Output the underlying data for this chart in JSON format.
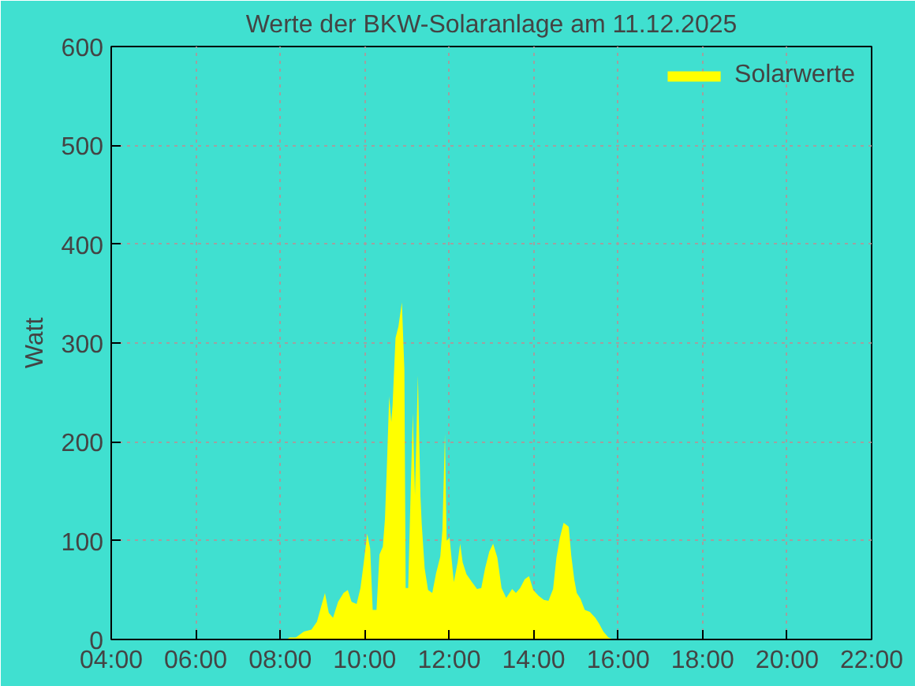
{
  "chart_data": {
    "type": "area",
    "title": "Werte der BKW-Solaranlage am 11.12.2025",
    "ylabel": "Watt",
    "xlim": [
      4,
      22
    ],
    "xticks": [
      {
        "value": 4,
        "label": "04:00"
      },
      {
        "value": 6,
        "label": "06:00"
      },
      {
        "value": 8,
        "label": "08:00"
      },
      {
        "value": 10,
        "label": "10:00"
      },
      {
        "value": 12,
        "label": "12:00"
      },
      {
        "value": 14,
        "label": "14:00"
      },
      {
        "value": 16,
        "label": "16:00"
      },
      {
        "value": 18,
        "label": "18:00"
      },
      {
        "value": 20,
        "label": "20:00"
      },
      {
        "value": 22,
        "label": "22:00"
      }
    ],
    "ylim": [
      0,
      600
    ],
    "yticks": [
      0,
      100,
      200,
      300,
      400,
      500,
      600
    ],
    "grid": true,
    "legend": "top right",
    "series": [
      {
        "name": "Solarwerte",
        "color": "#ffff00",
        "x": [
          8.15,
          8.22,
          8.37,
          8.56,
          8.74,
          8.87,
          8.96,
          9.06,
          9.15,
          9.25,
          9.37,
          9.5,
          9.6,
          9.69,
          9.81,
          9.9,
          9.97,
          10.06,
          10.13,
          10.19,
          10.28,
          10.35,
          10.43,
          10.48,
          10.53,
          10.58,
          10.63,
          10.66,
          10.73,
          10.8,
          10.88,
          10.94,
          10.97,
          11.03,
          11.09,
          11.14,
          11.19,
          11.26,
          11.32,
          11.35,
          11.42,
          11.5,
          11.6,
          11.69,
          11.79,
          11.84,
          11.9,
          11.94,
          12.01,
          12.11,
          12.2,
          12.26,
          12.32,
          12.41,
          12.54,
          12.66,
          12.76,
          12.85,
          12.95,
          13.04,
          13.14,
          13.24,
          13.35,
          13.49,
          13.58,
          13.68,
          13.79,
          13.89,
          13.99,
          14.12,
          14.24,
          14.35,
          14.46,
          14.54,
          14.62,
          14.71,
          14.83,
          14.89,
          14.96,
          15.02,
          15.11,
          15.21,
          15.33,
          15.46,
          15.55,
          15.65,
          15.77,
          15.9
        ],
        "values": [
          0,
          2,
          2,
          8,
          10,
          18,
          32,
          47,
          27,
          22,
          38,
          47,
          50,
          38,
          36,
          52,
          75,
          107,
          92,
          30,
          30,
          86,
          94,
          122,
          181,
          246,
          220,
          237,
          305,
          317,
          341,
          273,
          52,
          52,
          153,
          229,
          146,
          267,
          145,
          117,
          72,
          50,
          47,
          67,
          84,
          111,
          208,
          100,
          103,
          58,
          78,
          97,
          78,
          66,
          58,
          51,
          52,
          72,
          89,
          97,
          83,
          52,
          42,
          51,
          47,
          52,
          61,
          64,
          50,
          44,
          40,
          39,
          51,
          83,
          103,
          118,
          114,
          85,
          61,
          47,
          41,
          30,
          28,
          22,
          16,
          8,
          2,
          0
        ]
      }
    ]
  }
}
